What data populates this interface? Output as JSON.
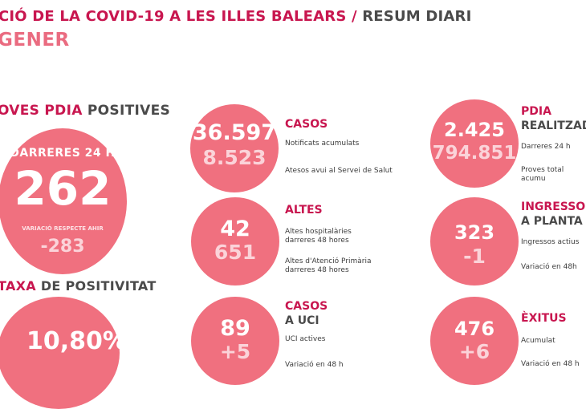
{
  "header": {
    "title_crimson": "CIÓ DE LA COVID-19 A LES ILLES BALEARS",
    "separator": " / ",
    "title_grey": "RESUM DIARI",
    "month": "GENER"
  },
  "proves": {
    "title_crimson": "OVES PDIA",
    "title_grey": " POSITIVES",
    "period": "DARRERES 24 H",
    "value": "262",
    "variation_label": "VARIACIÓ RESPECTE AHIR",
    "variation": "-283"
  },
  "taxa": {
    "title_crimson": "TAXA",
    "title_grey": " DE POSITIVITAT",
    "value": "10,80%"
  },
  "casos": {
    "title": "CASOS",
    "value_main": "36.597",
    "value_sub": "8.523",
    "label1": "Notificats acumulats",
    "label2": "Atesos avui al Servei de Salut"
  },
  "altes": {
    "title": "ALTES",
    "value_main": "42",
    "value_sub": "651",
    "label1_line1": "Altes hospitalàries",
    "label1_line2": "darreres 48 hores",
    "label2_line1": "Altes d'Atenció Primària",
    "label2_line2": "darreres 48 hores"
  },
  "uci": {
    "title_line1": "CASOS",
    "title_line2": "A UCI",
    "value_main": "89",
    "value_sub": "+5",
    "label1": "UCI actives",
    "label2": "Variació en 48 h"
  },
  "pdia": {
    "title_line1": "PDIA",
    "title_line2": "REALITZAD",
    "value_main": "2.425",
    "value_sub": "794.851",
    "label1": "Darreres 24 h",
    "label2": "Proves total acumu"
  },
  "ingressos": {
    "title_line1": "INGRESSOS",
    "title_line2": "A PLANTA",
    "value_main": "323",
    "value_sub": "-1",
    "label1": "Ingressos actius",
    "label2": "Variació en 48h"
  },
  "exitus": {
    "title": "ÈXITUS",
    "value_main": "476",
    "value_sub": "+6",
    "label1": "Acumulat",
    "label2": "Variació en 48 h"
  }
}
